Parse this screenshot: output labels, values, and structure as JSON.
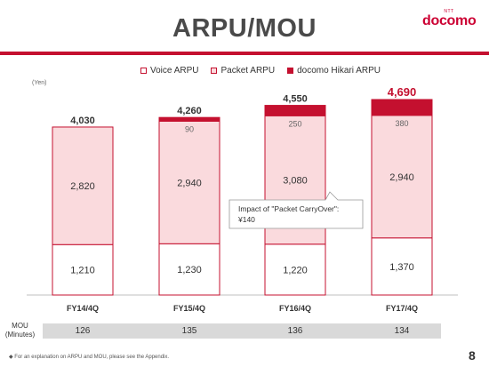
{
  "page": {
    "title": "ARPU/MOU",
    "logo_small": "NTT",
    "logo": "docomo",
    "unit": "(Yen)",
    "footnote": "◆ For an explanation on ARPU and MOU, please see the Appendix.",
    "page_number": "8",
    "mou_label_1": "MOU",
    "mou_label_2": "(Minutes)"
  },
  "legend": {
    "voice": "Voice ARPU",
    "packet": "Packet ARPU",
    "hikari": "docomo Hikari ARPU"
  },
  "colors": {
    "accent": "#c4102f",
    "voice_fill": "#ffffff",
    "packet_fill": "#fadadd",
    "hikari_fill": "#c4102f",
    "mou_band": "#d9d9d9"
  },
  "callout": {
    "line1": "Impact of \"Packet CarryOver\":",
    "line2": "¥140"
  },
  "chart_data": {
    "type": "bar",
    "stacked": true,
    "categories": [
      "FY14/4Q",
      "FY15/4Q",
      "FY16/4Q",
      "FY17/4Q"
    ],
    "series": [
      {
        "name": "Voice ARPU",
        "values": [
          1210,
          1230,
          1220,
          1370
        ]
      },
      {
        "name": "Packet ARPU",
        "values": [
          2820,
          2940,
          3080,
          2940
        ]
      },
      {
        "name": "docomo Hikari ARPU",
        "values": [
          0,
          90,
          250,
          380
        ]
      }
    ],
    "totals": [
      4030,
      4260,
      4550,
      4690
    ],
    "totals_labels": [
      "4,030",
      "4,260",
      "4,550",
      "4,690"
    ],
    "segment_labels": {
      "voice": [
        "1,210",
        "1,230",
        "1,220",
        "1,370"
      ],
      "packet": [
        "2,820",
        "2,940",
        "3,080",
        "2,940"
      ],
      "hikari": [
        "",
        "90",
        "250",
        "380"
      ]
    },
    "ylim": [
      0,
      4690
    ],
    "mou": {
      "values": [
        126,
        135,
        136,
        134
      ]
    }
  }
}
